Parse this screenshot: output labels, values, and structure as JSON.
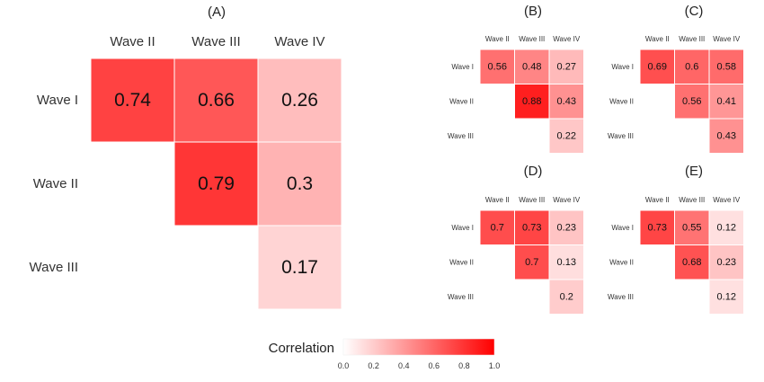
{
  "chart_data": [
    {
      "type": "heatmap",
      "title": "(A)",
      "columns": [
        "Wave II",
        "Wave III",
        "Wave IV"
      ],
      "rows": [
        "Wave I",
        "Wave II",
        "Wave III"
      ],
      "values": [
        [
          0.74,
          0.66,
          0.26
        ],
        [
          null,
          0.79,
          0.3
        ],
        [
          null,
          null,
          0.17
        ]
      ]
    },
    {
      "type": "heatmap",
      "title": "(B)",
      "columns": [
        "Wave II",
        "Wave III",
        "Wave IV"
      ],
      "rows": [
        "Wave I",
        "Wave II",
        "Wave III"
      ],
      "values": [
        [
          0.56,
          0.48,
          0.27
        ],
        [
          null,
          0.88,
          0.43
        ],
        [
          null,
          null,
          0.22
        ]
      ]
    },
    {
      "type": "heatmap",
      "title": "(C)",
      "columns": [
        "Wave II",
        "Wave III",
        "Wave IV"
      ],
      "rows": [
        "Wave I",
        "Wave II",
        "Wave III"
      ],
      "values": [
        [
          0.69,
          0.6,
          0.58
        ],
        [
          null,
          0.56,
          0.41
        ],
        [
          null,
          null,
          0.43
        ]
      ]
    },
    {
      "type": "heatmap",
      "title": "(D)",
      "columns": [
        "Wave II",
        "Wave III",
        "Wave IV"
      ],
      "rows": [
        "Wave I",
        "Wave II",
        "Wave III"
      ],
      "values": [
        [
          0.7,
          0.73,
          0.23
        ],
        [
          null,
          0.7,
          0.13
        ],
        [
          null,
          null,
          0.2
        ]
      ]
    },
    {
      "type": "heatmap",
      "title": "(E)",
      "columns": [
        "Wave II",
        "Wave III",
        "Wave IV"
      ],
      "rows": [
        "Wave I",
        "Wave II",
        "Wave III"
      ],
      "values": [
        [
          0.73,
          0.55,
          0.12
        ],
        [
          null,
          0.68,
          0.23
        ],
        [
          null,
          null,
          0.12
        ]
      ]
    }
  ],
  "legend": {
    "title": "Correlation",
    "ticks": [
      "0.0",
      "0.2",
      "0.4",
      "0.6",
      "0.8",
      "1.0"
    ],
    "range": [
      0,
      1
    ],
    "color_low": "#ffffff",
    "color_high": "#ff0000"
  }
}
